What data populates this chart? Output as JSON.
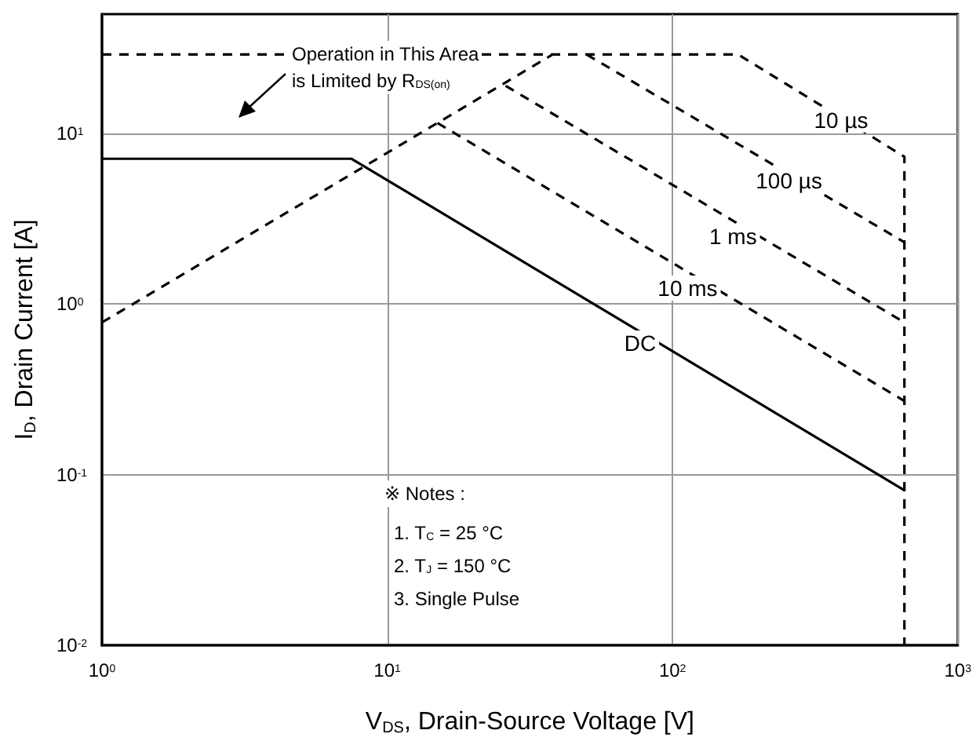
{
  "chart_data": {
    "type": "line",
    "xlabel": "V$_{DS}$, Drain-Source Voltage [V]",
    "ylabel": "I$_{D}$, Drain Current [A]",
    "log": "xy",
    "grid": true,
    "marker": "none",
    "xlim": [
      1,
      1000
    ],
    "xticks": [
      {
        "value": 1,
        "label": "10$^{0}$"
      },
      {
        "value": 10,
        "label": "10$^{1}$"
      },
      {
        "value": 100,
        "label": "10$^{2}$"
      },
      {
        "value": 1000,
        "label": "10$^{3}$"
      }
    ],
    "ylim": [
      0.01,
      50
    ],
    "yticks": [
      {
        "value": 0.01,
        "label": "10$^{-2}$"
      },
      {
        "value": 0.1,
        "label": "10$^{-1}$"
      },
      {
        "value": 1,
        "label": "10$^{0}$"
      },
      {
        "value": 10,
        "label": "10$^{1}$"
      }
    ],
    "series": [
      {
        "color": "#000000",
        "line_style": "dashed",
        "x": [
          1,
          38
        ],
        "values": [
          0.78,
          29
        ]
      },
      {
        "color": "#000000",
        "line_style": "dashed",
        "x": [
          1,
          170,
          650,
          650
        ],
        "values": [
          29,
          29,
          7.3,
          0.01
        ]
      },
      {
        "color": "#000000",
        "line_style": "dashed",
        "x": [
          50,
          650
        ],
        "values": [
          29,
          2.3
        ]
      },
      {
        "color": "#000000",
        "line_style": "dashed",
        "x": [
          26,
          650
        ],
        "values": [
          19,
          0.78
        ]
      },
      {
        "color": "#000000",
        "line_style": "dashed",
        "x": [
          15,
          650
        ],
        "values": [
          11.5,
          0.27
        ]
      },
      {
        "color": "#000000",
        "line_style": "solid",
        "x": [
          1,
          7.5,
          650
        ],
        "values": [
          7.1,
          7.1,
          0.081
        ]
      }
    ],
    "annotations": [
      {
        "text": "10 µs",
        "x": 390,
        "y": 12
      },
      {
        "text": "100 µs",
        "x": 256,
        "y": 5.3
      },
      {
        "text": "1 ms",
        "x": 163,
        "y": 2.5
      },
      {
        "text": "10 ms",
        "x": 113,
        "y": 1.24
      },
      {
        "text": "DC",
        "x": 77,
        "y": 0.59
      },
      "Operation in This Area\nis Limited by R$_{DS(on)}$",
      "※ Notes :",
      "1. T$_{C}$ = 25 °C",
      "2. T$_{J}$ = 150 °C",
      "3. Single Pulse"
    ]
  }
}
